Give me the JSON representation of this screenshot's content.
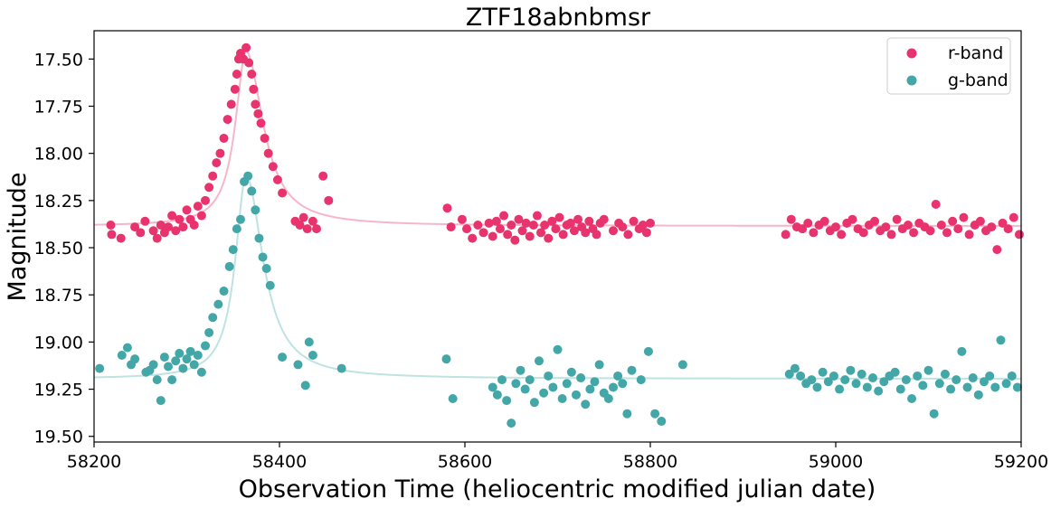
{
  "chart_data": {
    "type": "scatter",
    "title": "ZTF18abnbmsr",
    "xlabel": "Observation Time (heliocentric modified julian date)",
    "ylabel": "Magnitude",
    "xlim": [
      58200,
      59200
    ],
    "ylim": [
      19.53,
      17.35
    ],
    "y_inverted": true,
    "grid": false,
    "legend_position": "top-right",
    "xticks": [
      58200,
      58400,
      58600,
      58800,
      59000,
      59200
    ],
    "yticks": [
      17.5,
      17.75,
      18.0,
      18.25,
      18.5,
      18.75,
      19.0,
      19.25,
      19.5
    ],
    "ytick_labels": [
      "17.50",
      "17.75",
      "18.00",
      "18.25",
      "18.50",
      "18.75",
      "19.00",
      "19.25",
      "19.50"
    ],
    "series": [
      {
        "name": "r-band",
        "color": "#e8336e",
        "fit_color": "#f6b6c9",
        "x": [
          58218,
          58219,
          58229,
          58244,
          58250,
          58255,
          58264,
          58268,
          58272,
          58276,
          58280,
          58284,
          58288,
          58292,
          58296,
          58300,
          58304,
          58308,
          58312,
          58316,
          58320,
          58324,
          58328,
          58332,
          58336,
          58340,
          58344,
          58348,
          58352,
          58354,
          58356,
          58358,
          58361,
          58364,
          58367,
          58370,
          58372,
          58374,
          58377,
          58380,
          58384,
          58388,
          58393,
          58398,
          58403,
          58417,
          58422,
          58426,
          58430,
          58436,
          58440,
          58447,
          58453,
          58581,
          58585,
          58597,
          58602,
          58608,
          58614,
          58620,
          58626,
          58630,
          58634,
          58638,
          58642,
          58646,
          58650,
          58654,
          58658,
          58662,
          58666,
          58670,
          58674,
          58678,
          58682,
          58686,
          58690,
          58694,
          58698,
          58702,
          58706,
          58710,
          58714,
          58718,
          58722,
          58726,
          58730,
          58734,
          58738,
          58742,
          58746,
          58750,
          58760,
          58766,
          58770,
          58776,
          58782,
          58788,
          58792,
          58796,
          58800,
          58946,
          58952,
          58958,
          58964,
          58970,
          58976,
          58982,
          58988,
          58994,
          59000,
          59006,
          59012,
          59018,
          59024,
          59030,
          59036,
          59042,
          59048,
          59054,
          59060,
          59066,
          59072,
          59078,
          59084,
          59090,
          59096,
          59102,
          59108,
          59114,
          59120,
          59126,
          59132,
          59138,
          59144,
          59150,
          59156,
          59162,
          59168,
          59174,
          59180,
          59186,
          59192,
          59198
        ],
        "values": [
          18.38,
          18.43,
          18.45,
          18.39,
          18.42,
          18.36,
          18.41,
          18.45,
          18.38,
          18.42,
          18.39,
          18.33,
          18.41,
          18.35,
          18.39,
          18.3,
          18.35,
          18.38,
          18.28,
          18.33,
          18.25,
          18.18,
          18.12,
          18.05,
          18.0,
          17.92,
          17.82,
          17.74,
          17.66,
          17.58,
          17.5,
          17.47,
          17.5,
          17.44,
          17.52,
          17.58,
          17.66,
          17.74,
          17.79,
          17.84,
          17.92,
          18.0,
          18.07,
          18.14,
          18.21,
          18.36,
          18.38,
          18.34,
          18.4,
          18.36,
          18.4,
          18.12,
          18.25,
          18.29,
          18.39,
          18.35,
          18.4,
          18.45,
          18.38,
          18.42,
          18.37,
          18.44,
          18.36,
          18.4,
          18.33,
          18.43,
          18.38,
          18.46,
          18.35,
          18.41,
          18.37,
          18.44,
          18.38,
          18.33,
          18.42,
          18.38,
          18.45,
          18.36,
          18.4,
          18.34,
          18.43,
          18.38,
          18.37,
          18.41,
          18.35,
          18.39,
          18.42,
          18.36,
          18.4,
          18.43,
          18.37,
          18.35,
          18.41,
          18.37,
          18.39,
          18.43,
          18.36,
          18.4,
          18.38,
          18.42,
          18.37,
          18.43,
          18.35,
          18.39,
          18.4,
          18.37,
          18.42,
          18.38,
          18.36,
          18.41,
          18.39,
          18.43,
          18.37,
          18.35,
          18.4,
          18.42,
          18.38,
          18.36,
          18.41,
          18.39,
          18.43,
          18.35,
          18.4,
          18.38,
          18.42,
          18.37,
          18.39,
          18.41,
          18.27,
          18.38,
          18.42,
          18.36,
          18.4,
          18.34,
          18.43,
          18.38,
          18.36,
          18.41,
          18.39,
          18.51,
          18.37,
          18.4,
          18.34,
          18.43
        ]
      },
      {
        "name": "g-band",
        "color": "#43a6a7",
        "fit_color": "#bfe2e2",
        "x": [
          58206,
          58230,
          58236,
          58240,
          58244,
          58256,
          58260,
          58264,
          58268,
          58272,
          58276,
          58280,
          58284,
          58288,
          58292,
          58296,
          58300,
          58304,
          58308,
          58312,
          58316,
          58320,
          58324,
          58328,
          58334,
          58340,
          58346,
          58350,
          58354,
          58358,
          58362,
          58366,
          58370,
          58374,
          58378,
          58382,
          58386,
          58390,
          58403,
          58420,
          58428,
          58432,
          58436,
          58467,
          58580,
          58587,
          58630,
          58635,
          58640,
          58645,
          58650,
          58655,
          58660,
          58665,
          58670,
          58675,
          58680,
          58685,
          58690,
          58695,
          58700,
          58705,
          58710,
          58715,
          58720,
          58725,
          58730,
          58735,
          58740,
          58745,
          58750,
          58755,
          58760,
          58765,
          58770,
          58775,
          58780,
          58790,
          58798,
          58805,
          58812,
          58835,
          58950,
          58956,
          58962,
          58968,
          58974,
          58980,
          58986,
          58992,
          58998,
          59004,
          59010,
          59016,
          59022,
          59028,
          59034,
          59040,
          59046,
          59052,
          59058,
          59064,
          59070,
          59076,
          59082,
          59088,
          59094,
          59100,
          59106,
          59112,
          59118,
          59124,
          59130,
          59136,
          59142,
          59148,
          59154,
          59160,
          59166,
          59172,
          59178,
          59184,
          59190,
          59196
        ],
        "values": [
          19.14,
          19.07,
          19.03,
          19.12,
          19.09,
          19.16,
          19.15,
          19.12,
          19.2,
          19.31,
          19.08,
          19.13,
          19.2,
          19.1,
          19.06,
          19.14,
          19.09,
          19.05,
          19.12,
          19.07,
          19.16,
          19.02,
          18.95,
          18.87,
          18.8,
          18.73,
          18.6,
          18.51,
          18.4,
          18.35,
          18.15,
          18.12,
          18.2,
          18.3,
          18.45,
          18.55,
          18.61,
          18.7,
          19.08,
          19.12,
          19.23,
          19.0,
          19.07,
          19.14,
          19.09,
          19.3,
          19.24,
          19.28,
          19.2,
          19.31,
          19.43,
          19.22,
          19.15,
          19.25,
          19.2,
          19.32,
          19.1,
          19.27,
          19.18,
          19.24,
          19.04,
          19.3,
          19.22,
          19.16,
          19.28,
          19.19,
          19.33,
          19.25,
          19.21,
          19.12,
          19.27,
          19.3,
          19.24,
          19.18,
          19.22,
          19.38,
          19.15,
          19.2,
          19.05,
          19.38,
          19.42,
          19.12,
          19.17,
          19.14,
          19.18,
          19.22,
          19.2,
          19.24,
          19.16,
          19.21,
          19.18,
          19.25,
          19.2,
          19.15,
          19.22,
          19.17,
          19.24,
          19.19,
          19.26,
          19.21,
          19.18,
          19.16,
          19.25,
          19.2,
          19.3,
          19.18,
          19.23,
          19.15,
          19.38,
          19.22,
          19.17,
          19.25,
          19.2,
          19.05,
          19.24,
          19.19,
          19.28,
          19.21,
          19.18,
          19.24,
          18.99,
          19.22,
          19.18,
          19.24
        ]
      }
    ]
  }
}
